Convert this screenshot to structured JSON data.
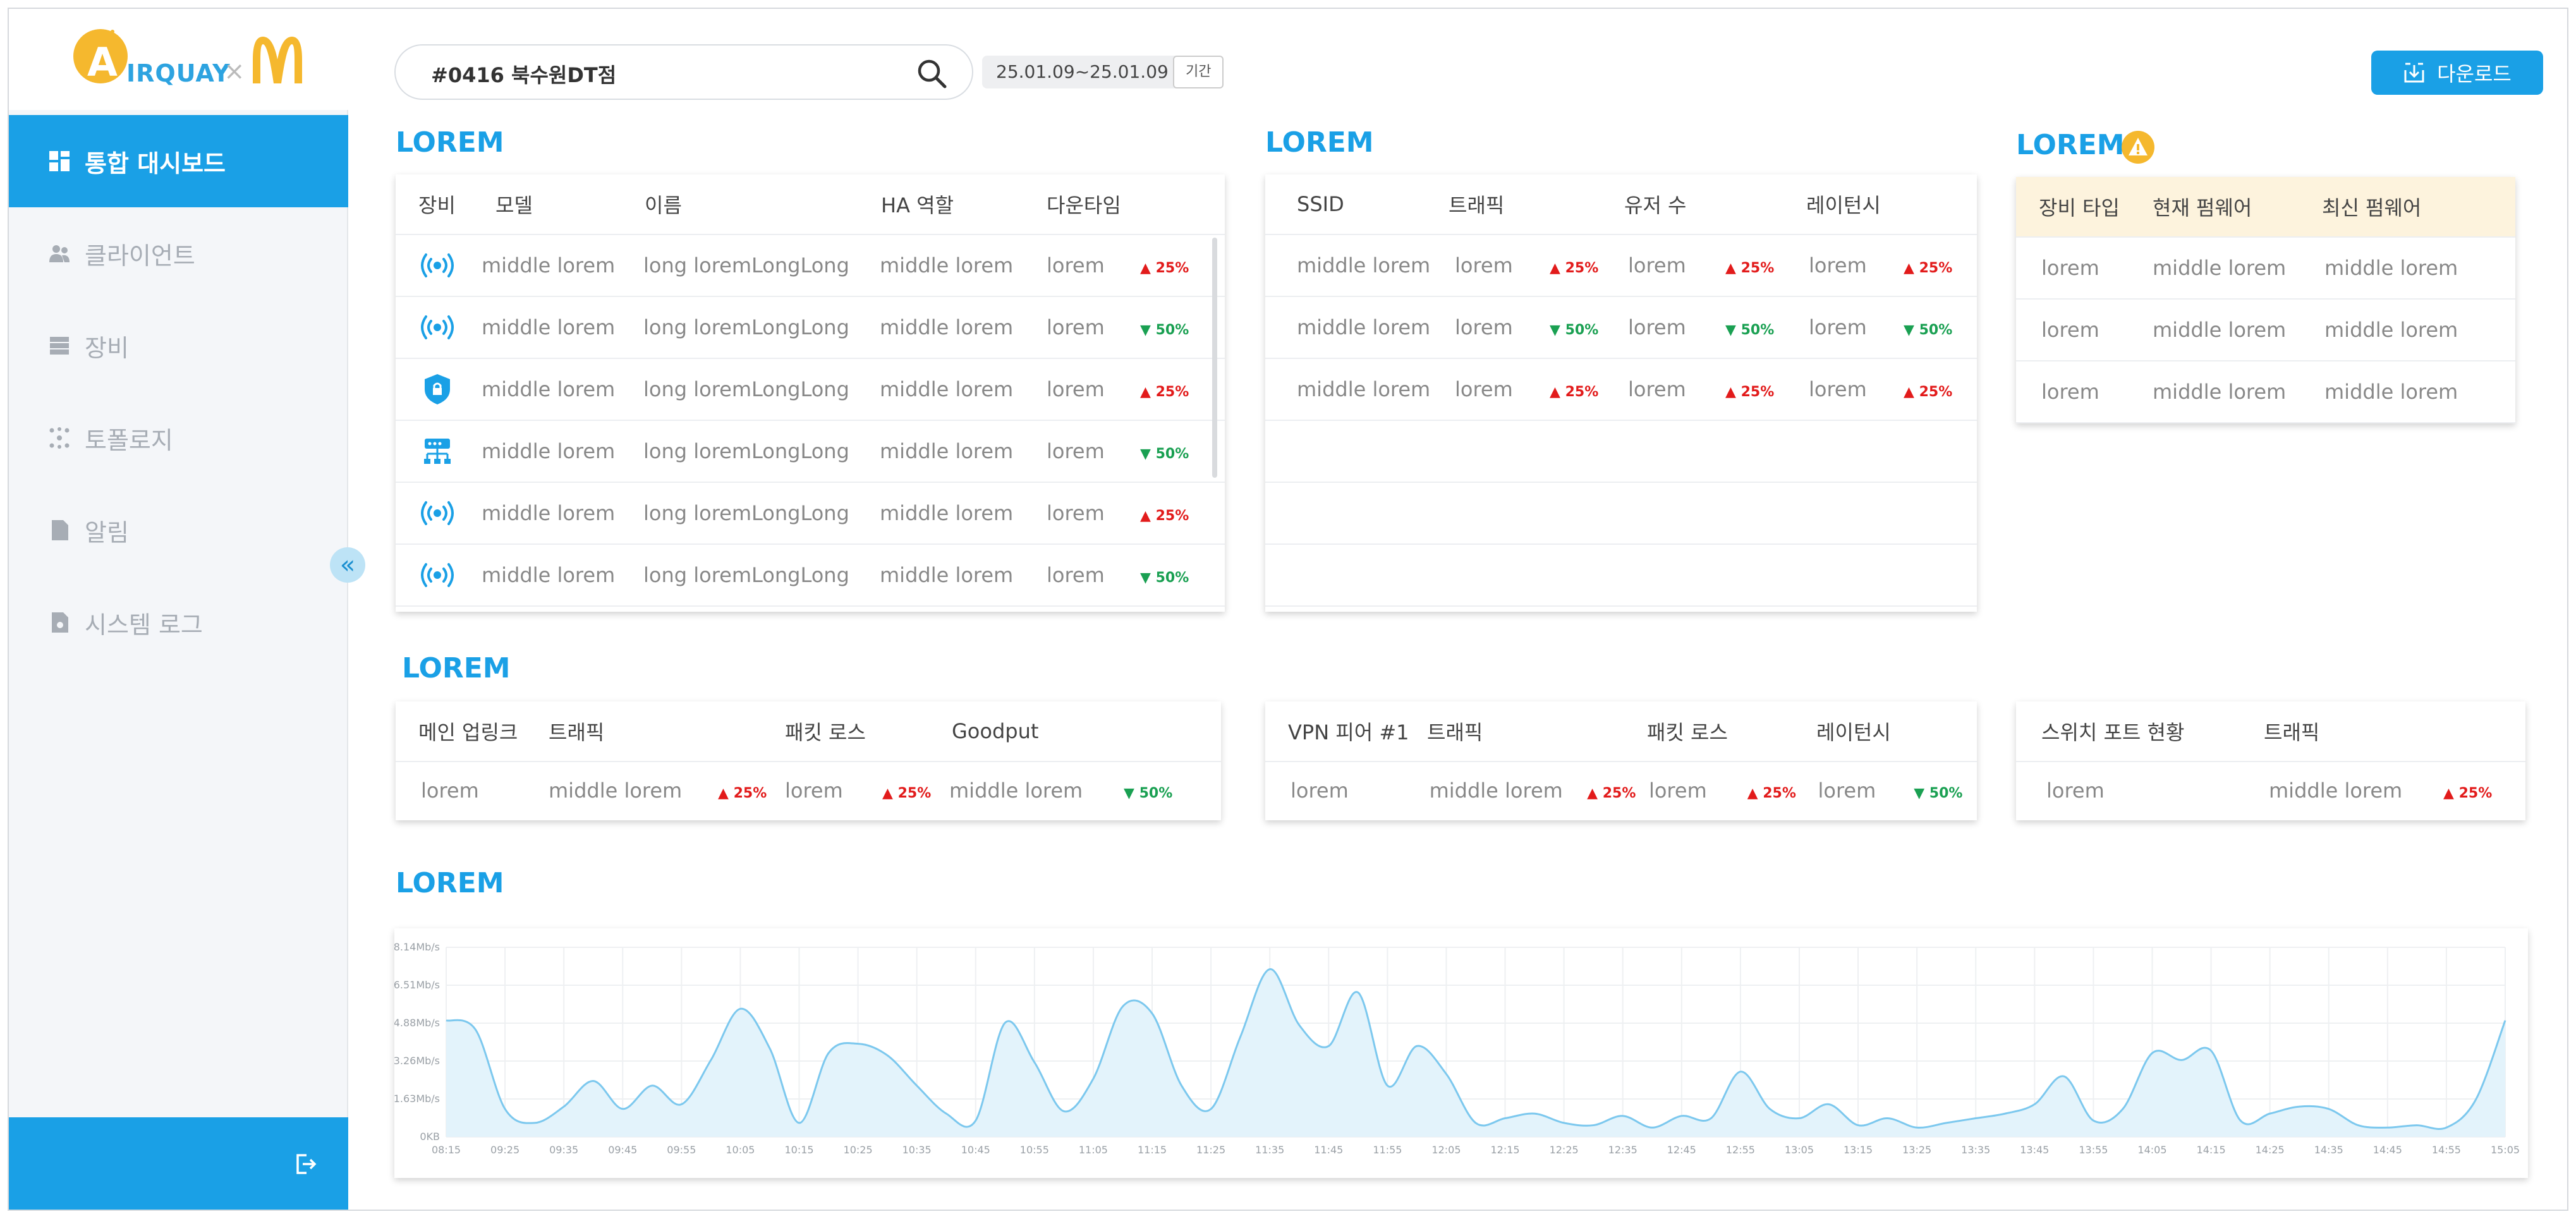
{
  "brand": {
    "logo_text": "IRQUAY",
    "logo_letter": "A",
    "logo_x": "×"
  },
  "sidebar": {
    "items": [
      {
        "label": "통합 대시보드",
        "icon": "dashboard-icon",
        "active": true
      },
      {
        "label": "클라이언트",
        "icon": "users-icon",
        "active": false
      },
      {
        "label": "장비",
        "icon": "server-icon",
        "active": false
      },
      {
        "label": "토폴로지",
        "icon": "topology-icon",
        "active": false
      },
      {
        "label": "알림",
        "icon": "document-icon",
        "active": false
      },
      {
        "label": "시스템 로그",
        "icon": "log-file-icon",
        "active": false
      }
    ],
    "collapse_icon": "double-chevron-left-icon",
    "logout_icon": "logout-icon"
  },
  "topbar": {
    "search_value": "#0416 북수원DT점",
    "date_range": "25.01.09~25.01.09",
    "period_label": "기간",
    "download_label": "다운로드"
  },
  "colors": {
    "accent": "#1aa0e6",
    "up": "#e21b1b",
    "down": "#1aa052",
    "warning": "#f5b82e",
    "firmware_header": "#fdf3dd"
  },
  "section1": {
    "title": "LOREM",
    "headers": [
      "장비",
      "모델",
      "이름",
      "HA 역할",
      "다운타임"
    ],
    "rows": [
      {
        "icon": "wifi-ap-icon",
        "model": "middle lorem",
        "name": "long loremLongLong",
        "ha": "middle lorem",
        "downtime": "lorem",
        "dir": "up",
        "change": "25%"
      },
      {
        "icon": "wifi-ap-icon",
        "model": "middle lorem",
        "name": "long loremLongLong",
        "ha": "middle lorem",
        "downtime": "lorem",
        "dir": "down",
        "change": "50%"
      },
      {
        "icon": "security-shield-icon",
        "model": "middle lorem",
        "name": "long loremLongLong",
        "ha": "middle lorem",
        "downtime": "lorem",
        "dir": "up",
        "change": "25%"
      },
      {
        "icon": "switch-icon",
        "model": "middle lorem",
        "name": "long loremLongLong",
        "ha": "middle lorem",
        "downtime": "lorem",
        "dir": "down",
        "change": "50%"
      },
      {
        "icon": "wifi-ap-icon",
        "model": "middle lorem",
        "name": "long loremLongLong",
        "ha": "middle lorem",
        "downtime": "lorem",
        "dir": "up",
        "change": "25%"
      },
      {
        "icon": "wifi-ap-icon",
        "model": "middle lorem",
        "name": "long loremLongLong",
        "ha": "middle lorem",
        "downtime": "lorem",
        "dir": "down",
        "change": "50%"
      }
    ]
  },
  "section2": {
    "title": "LOREM",
    "headers": [
      "SSID",
      "트래픽",
      "유저 수",
      "레이턴시"
    ],
    "rows": [
      {
        "ssid": "middle lorem",
        "traffic": "lorem",
        "t_dir": "up",
        "t_chg": "25%",
        "users": "lorem",
        "u_dir": "up",
        "u_chg": "25%",
        "latency": "lorem",
        "l_dir": "up",
        "l_chg": "25%"
      },
      {
        "ssid": "middle lorem",
        "traffic": "lorem",
        "t_dir": "down",
        "t_chg": "50%",
        "users": "lorem",
        "u_dir": "down",
        "u_chg": "50%",
        "latency": "lorem",
        "l_dir": "down",
        "l_chg": "50%"
      },
      {
        "ssid": "middle lorem",
        "traffic": "lorem",
        "t_dir": "up",
        "t_chg": "25%",
        "users": "lorem",
        "u_dir": "up",
        "u_chg": "25%",
        "latency": "lorem",
        "l_dir": "up",
        "l_chg": "25%"
      }
    ],
    "empty_rows": 3
  },
  "section3": {
    "title": "LOREM",
    "warning_icon": "warning-triangle-icon",
    "headers": [
      "장비 타입",
      "현재 펌웨어",
      "최신 펌웨어"
    ],
    "rows": [
      [
        "lorem",
        "middle lorem",
        "middle lorem"
      ],
      [
        "lorem",
        "middle lorem",
        "middle lorem"
      ],
      [
        "lorem",
        "middle lorem",
        "middle lorem"
      ]
    ]
  },
  "section4": {
    "title": "LOREM",
    "uplink": {
      "headers": [
        "메인 업링크",
        "트래픽",
        "패킷 로스",
        "Goodput"
      ],
      "row": {
        "a": "lorem",
        "b": "middle lorem",
        "b_dir": "up",
        "b_chg": "25%",
        "c": "lorem",
        "c_dir": "up",
        "c_chg": "25%",
        "d": "middle lorem",
        "d_dir": "down",
        "d_chg": "50%"
      }
    },
    "vpn": {
      "headers": [
        "VPN 피어 #1",
        "트래픽",
        "패킷 로스",
        "레이턴시"
      ],
      "row": {
        "a": "lorem",
        "b": "middle lorem",
        "b_dir": "up",
        "b_chg": "25%",
        "c": "lorem",
        "c_dir": "up",
        "c_chg": "25%",
        "d": "lorem",
        "d_dir": "down",
        "d_chg": "50%"
      }
    },
    "switch": {
      "headers": [
        "스위치 포트 현황",
        "트래픽"
      ],
      "row": {
        "a": "lorem",
        "b": "middle lorem",
        "b_dir": "up",
        "b_chg": "25%"
      }
    }
  },
  "section5": {
    "title": "LOREM"
  },
  "chart_data": {
    "type": "area",
    "title": "",
    "xlabel": "",
    "ylabel": "",
    "y_ticks": [
      "0KB",
      "1.63Mb/s",
      "3.26Mb/s",
      "4.88Mb/s",
      "6.51Mb/s",
      "8.14Mb/s"
    ],
    "ylim": [
      0,
      8.14
    ],
    "x_ticks": [
      "08:15",
      "09:25",
      "09:35",
      "09:45",
      "09:55",
      "10:05",
      "10:15",
      "10:25",
      "10:35",
      "10:45",
      "10:55",
      "11:05",
      "11:15",
      "11:25",
      "11:35",
      "11:45",
      "11:55",
      "12:05",
      "12:15",
      "12:25",
      "12:35",
      "12:45",
      "12:55",
      "13:05",
      "13:15",
      "13:25",
      "13:35",
      "13:45",
      "13:55",
      "14:05",
      "14:15",
      "14:25",
      "14:35",
      "14:45",
      "14:55",
      "15:05"
    ],
    "grid": true,
    "series": [
      {
        "values": [
          5.0,
          4.6,
          1.2,
          0.6,
          1.3,
          2.4,
          1.2,
          2.2,
          1.4,
          3.3,
          5.5,
          3.8,
          0.6,
          3.6,
          4.0,
          3.5,
          2.2,
          1.0,
          0.7,
          4.9,
          3.2,
          1.1,
          2.5,
          5.6,
          5.3,
          2.2,
          1.2,
          4.3,
          7.2,
          4.8,
          3.9,
          6.2,
          2.2,
          3.9,
          2.7,
          0.6,
          0.8,
          1.0,
          0.6,
          0.5,
          0.9,
          0.4,
          0.9,
          0.8,
          2.8,
          1.2,
          0.8,
          1.4,
          0.5,
          0.8,
          0.4,
          0.6,
          0.8,
          1.0,
          1.4,
          2.6,
          0.7,
          1.2,
          3.6,
          3.3,
          3.7,
          0.7,
          1.0,
          1.3,
          1.2,
          0.5,
          0.4,
          0.5,
          0.4,
          1.6,
          5.0
        ]
      }
    ]
  }
}
